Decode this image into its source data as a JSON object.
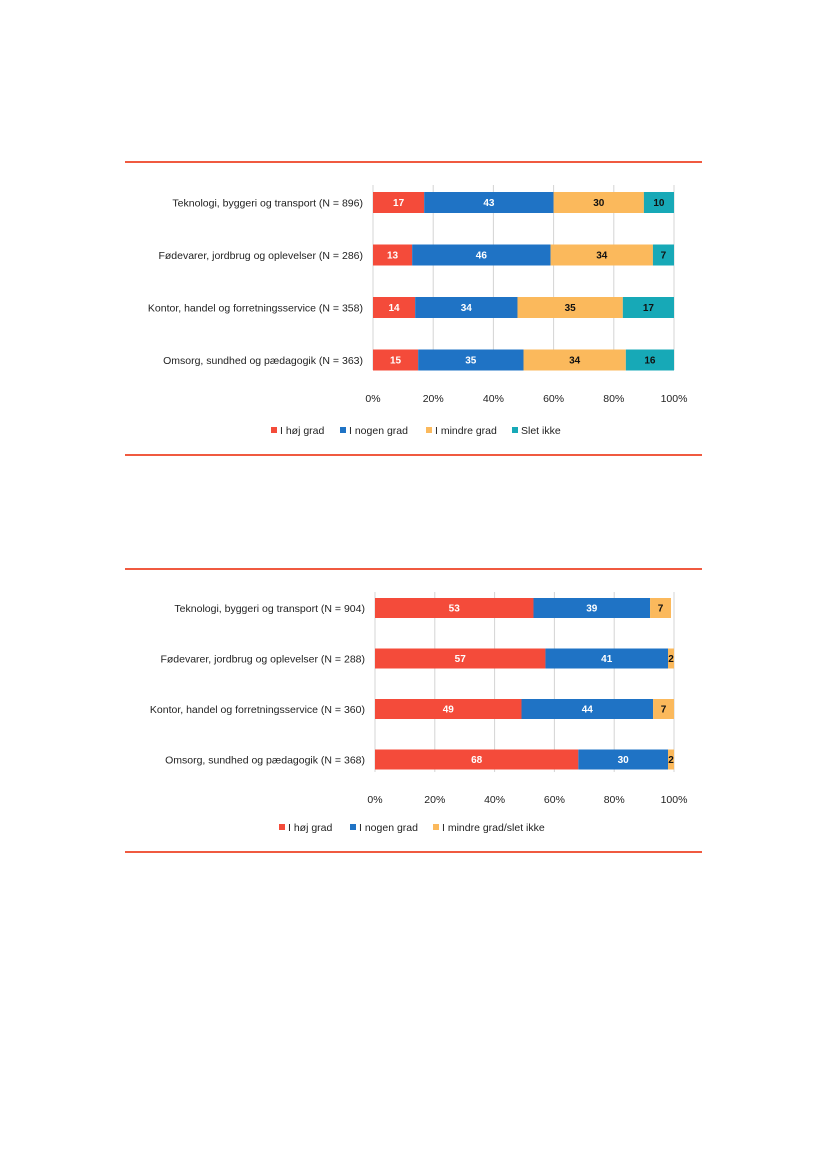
{
  "chart_data": [
    {
      "type": "bar",
      "orientation": "horizontal",
      "stacked": true,
      "categories": [
        "Teknologi, byggeri og transport (N = 896)",
        "Fødevarer, jordbrug og oplevelser (N = 286)",
        "Kontor, handel og forretningsservice (N = 358)",
        "Omsorg, sundhed og pædagogik (N = 363)"
      ],
      "series": [
        {
          "name": "I høj grad",
          "color": "#f44b3a",
          "label_color": "#ffffff",
          "values": [
            17,
            13,
            14,
            15
          ]
        },
        {
          "name": "I nogen grad",
          "color": "#1f73c5",
          "label_color": "#ffffff",
          "values": [
            43,
            46,
            34,
            35
          ]
        },
        {
          "name": "I mindre grad",
          "color": "#fbb95c",
          "label_color": "#111111",
          "values": [
            30,
            34,
            35,
            34
          ]
        },
        {
          "name": "Slet ikke",
          "color": "#17a9b7",
          "label_color": "#111111",
          "values": [
            10,
            7,
            17,
            16
          ]
        }
      ],
      "xlim": [
        0,
        100
      ],
      "xticks": [
        "0%",
        "20%",
        "40%",
        "60%",
        "80%",
        "100%"
      ],
      "grid": true,
      "legend": "bottom"
    },
    {
      "type": "bar",
      "orientation": "horizontal",
      "stacked": true,
      "categories": [
        "Teknologi, byggeri og transport (N = 904)",
        "Fødevarer, jordbrug og oplevelser (N = 288)",
        "Kontor, handel og forretningsservice (N = 360)",
        "Omsorg, sundhed og pædagogik (N = 368)"
      ],
      "series": [
        {
          "name": "I høj grad",
          "color": "#f44b3a",
          "label_color": "#ffffff",
          "values": [
            53,
            57,
            49,
            68
          ]
        },
        {
          "name": "I nogen grad",
          "color": "#1f73c5",
          "label_color": "#ffffff",
          "values": [
            39,
            41,
            44,
            30
          ]
        },
        {
          "name": "I mindre grad/slet ikke",
          "color": "#fbb95c",
          "label_color": "#111111",
          "values": [
            7,
            2,
            7,
            2
          ]
        }
      ],
      "xlim": [
        0,
        100
      ],
      "xticks": [
        "0%",
        "20%",
        "40%",
        "60%",
        "80%",
        "100%"
      ],
      "grid": true,
      "legend": "bottom"
    }
  ]
}
